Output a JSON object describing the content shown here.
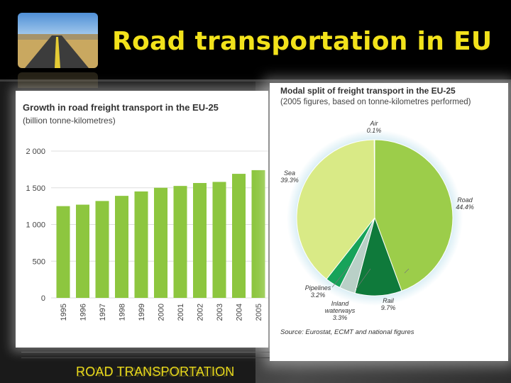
{
  "slide": {
    "title": "Road transportation in EU",
    "footer": "ROAD TRANSPORTATION",
    "thumbnail_icon": "road-photo"
  },
  "chart_data": [
    {
      "type": "bar",
      "title": "Growth in road freight transport in the EU-25",
      "subtitle": "(billion tonne-kilometres)",
      "categories": [
        "1995",
        "1996",
        "1997",
        "1998",
        "1999",
        "2000",
        "2001",
        "2002",
        "2003",
        "2004",
        "2005"
      ],
      "values": [
        1250,
        1270,
        1320,
        1390,
        1450,
        1500,
        1525,
        1565,
        1580,
        1690,
        1740
      ],
      "ylim": [
        0,
        2000
      ],
      "yticks": [
        "0",
        "500",
        "1 000",
        "1 500",
        "2 000"
      ],
      "ytick_values": [
        0,
        500,
        1000,
        1500,
        2000
      ],
      "grid": true,
      "color": "#8dc63f"
    },
    {
      "type": "pie",
      "title": "Modal split of freight transport in the EU-25",
      "subtitle": "(2005 figures, based on tonne-kilometres performed)",
      "source": "Source: Eurostat, ECMT and national figures",
      "slices": [
        {
          "name": "Road",
          "value": 44.4,
          "label": "44.4%",
          "color": "#9ccd4a"
        },
        {
          "name": "Rail",
          "value": 9.7,
          "label": "9.7%",
          "color": "#0f7a3b"
        },
        {
          "name": "Inland waterways",
          "value": 3.3,
          "label": "3.3%",
          "color": "#b9d0c7"
        },
        {
          "name": "Pipelines",
          "value": 3.2,
          "label": "3.2%",
          "color": "#17a35a"
        },
        {
          "name": "Sea",
          "value": 39.3,
          "label": "39.3%",
          "color": "#d9ea86"
        },
        {
          "name": "Air",
          "value": 0.1,
          "label": "0.1%",
          "color": "#2c4c6e"
        }
      ]
    }
  ]
}
